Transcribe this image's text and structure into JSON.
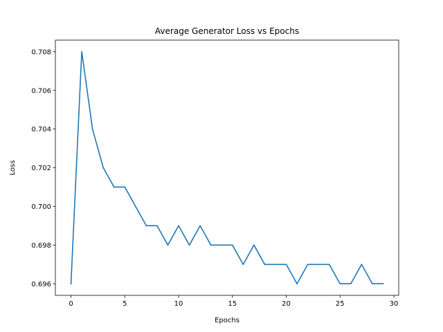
{
  "chart_data": {
    "type": "line",
    "title": "Average Generator Loss vs Epochs",
    "xlabel": "Epochs",
    "ylabel": "Loss",
    "xlim": [
      -1.45,
      30.45
    ],
    "ylim": [
      0.6954,
      0.7086
    ],
    "xticks": [
      0,
      5,
      10,
      15,
      20,
      25,
      30
    ],
    "xtick_labels": [
      "0",
      "5",
      "10",
      "15",
      "20",
      "25",
      "30"
    ],
    "yticks": [
      0.696,
      0.698,
      0.7,
      0.702,
      0.704,
      0.706,
      0.708
    ],
    "ytick_labels": [
      "0.696",
      "0.698",
      "0.700",
      "0.702",
      "0.704",
      "0.706",
      "0.708"
    ],
    "grid": false,
    "series": [
      {
        "color": "#1f77b4",
        "x": [
          0,
          1,
          2,
          3,
          4,
          5,
          6,
          7,
          8,
          9,
          10,
          11,
          12,
          13,
          14,
          15,
          16,
          17,
          18,
          19,
          20,
          21,
          22,
          23,
          24,
          25,
          26,
          27,
          28,
          29
        ],
        "y": [
          0.696,
          0.708,
          0.704,
          0.702,
          0.701,
          0.701,
          0.7,
          0.699,
          0.699,
          0.698,
          0.699,
          0.698,
          0.699,
          0.698,
          0.698,
          0.698,
          0.697,
          0.698,
          0.697,
          0.697,
          0.697,
          0.696,
          0.697,
          0.697,
          0.697,
          0.696,
          0.696,
          0.697,
          0.696,
          0.696
        ]
      }
    ]
  }
}
